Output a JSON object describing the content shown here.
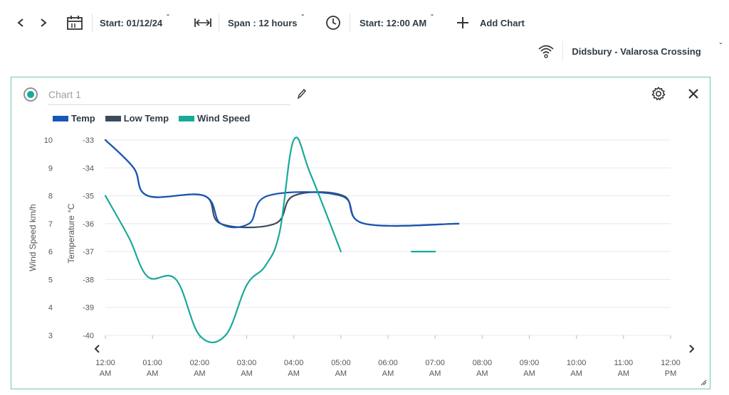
{
  "toolbar": {
    "start_date": "Start: 01/12/24",
    "span": "Span : 12 hours",
    "start_time": "Start: 12:00 AM",
    "add_chart": "Add Chart"
  },
  "location": {
    "name": "Didsbury - Valarosa Crossing"
  },
  "chart_panel": {
    "placeholder": "Chart 1"
  },
  "chart_data": {
    "type": "line",
    "legend_position": "top-left",
    "grid": true,
    "x_ticks": [
      "12:00\nAM",
      "01:00\nAM",
      "02:00\nAM",
      "03:00\nAM",
      "04:00\nAM",
      "05:00\nAM",
      "06:00\nAM",
      "07:00\nAM",
      "08:00\nAM",
      "09:00\nAM",
      "10:00\nAM",
      "11:00\nAM",
      "12:00\nPM"
    ],
    "xlim_hours": [
      0,
      12
    ],
    "y_left_outer": {
      "label": "Wind Speed km/h",
      "range": [
        3,
        10
      ],
      "ticks": [
        10,
        9,
        8,
        7,
        6,
        5,
        4,
        3
      ]
    },
    "y_left_inner": {
      "label": "Temperature °C",
      "range": [
        -40,
        -33
      ],
      "ticks": [
        -33,
        -34,
        -35,
        -36,
        -37,
        -38,
        -39,
        -40
      ]
    },
    "series": [
      {
        "name": "Temp",
        "color": "#1a56b5",
        "axis": "temp",
        "points": [
          [
            0,
            -33
          ],
          [
            0.6,
            -34
          ],
          [
            0.9,
            -35
          ],
          [
            2.1,
            -35
          ],
          [
            2.45,
            -36
          ],
          [
            3.05,
            -36
          ],
          [
            3.45,
            -35
          ],
          [
            5.0,
            -35
          ],
          [
            5.5,
            -36
          ],
          [
            7.5,
            -36
          ]
        ]
      },
      {
        "name": "Low Temp",
        "color": "#3c4a5c",
        "axis": "temp",
        "points": [
          [
            0,
            -33
          ],
          [
            0.6,
            -34
          ],
          [
            0.9,
            -35
          ],
          [
            2.1,
            -35
          ],
          [
            2.45,
            -36
          ],
          [
            3.6,
            -36
          ],
          [
            4.0,
            -35
          ],
          [
            5.05,
            -35
          ],
          [
            5.5,
            -36
          ],
          [
            7.5,
            -36
          ]
        ]
      },
      {
        "name": "Wind Speed",
        "color": "#19a99a",
        "axis": "wind",
        "points": [
          [
            0,
            8
          ],
          [
            0.5,
            6.5
          ],
          [
            0.9,
            5.1
          ],
          [
            1.5,
            5
          ],
          [
            2.0,
            3
          ],
          [
            2.55,
            3
          ],
          [
            3.0,
            4.8
          ],
          [
            3.4,
            5.5
          ],
          [
            3.7,
            6.7
          ],
          [
            4.0,
            10
          ],
          [
            4.35,
            8.8
          ],
          [
            5.0,
            6
          ]
        ]
      },
      {
        "name": "Wind Speed (segment)",
        "legend": false,
        "color": "#19a99a",
        "axis": "wind",
        "points": [
          [
            6.5,
            6
          ],
          [
            7.0,
            6
          ]
        ]
      }
    ]
  }
}
